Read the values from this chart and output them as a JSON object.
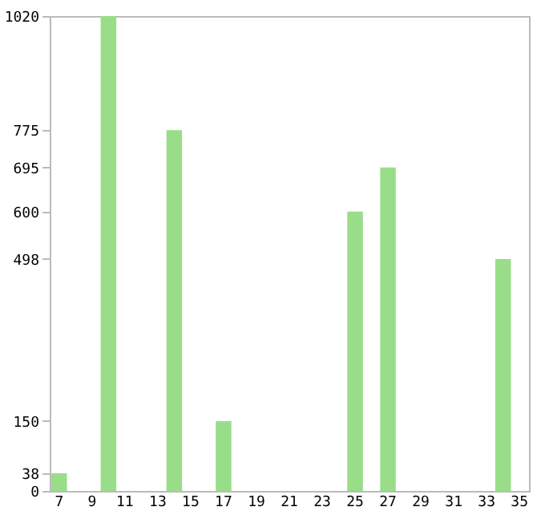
{
  "chart_data": {
    "type": "bar",
    "categories": [
      "7",
      null,
      "9",
      null,
      "11",
      null,
      "13",
      null,
      "15",
      null,
      "17",
      null,
      "19",
      null,
      "21",
      null,
      "23",
      null,
      "25",
      null,
      "27",
      null,
      "29",
      null,
      "31",
      null,
      "33",
      null,
      "35"
    ],
    "values": [
      38,
      0,
      0,
      1020,
      0,
      0,
      0,
      775,
      0,
      0,
      150,
      0,
      0,
      0,
      0,
      0,
      0,
      0,
      600,
      0,
      695,
      0,
      0,
      0,
      0,
      0,
      0,
      498,
      0
    ],
    "color": "#99dd88",
    "ylim": [
      0,
      1020
    ],
    "yticks": [
      0,
      38,
      150,
      498,
      600,
      695,
      775,
      1020
    ],
    "grid": false
  }
}
